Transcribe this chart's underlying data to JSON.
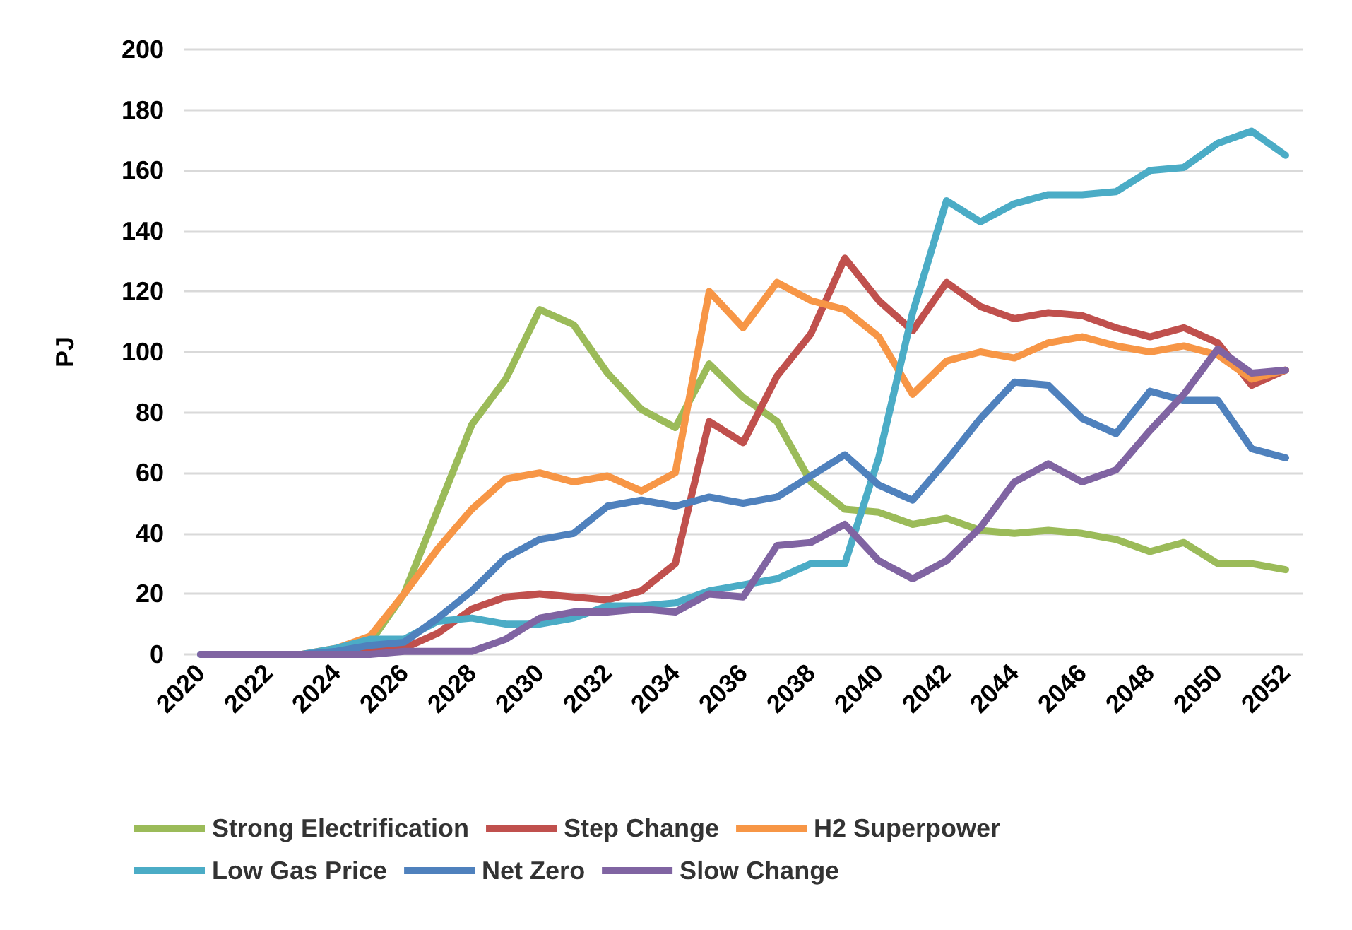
{
  "chart_data": {
    "type": "line",
    "ylabel": "PJ",
    "categories": [
      "2020",
      null,
      "2022",
      null,
      "2024",
      null,
      "2026",
      null,
      "2028",
      null,
      "2030",
      null,
      "2032",
      null,
      "2034",
      null,
      "2036",
      null,
      "2038",
      null,
      "2040",
      null,
      "2042",
      null,
      "2044",
      null,
      "2046",
      null,
      "2048",
      null,
      "2050",
      null,
      "2052"
    ],
    "ylim": [
      0,
      200
    ],
    "yticks": [
      0,
      20,
      40,
      60,
      80,
      100,
      120,
      140,
      160,
      180,
      200
    ],
    "grid": "y",
    "legend": "bottom",
    "marker": "none",
    "line_style": "solid",
    "series": [
      {
        "name": "Strong Electrification",
        "color": "#9bbb59",
        "values": [
          null,
          null,
          0,
          0,
          1,
          4,
          20,
          48,
          76,
          91,
          114,
          109,
          93,
          81,
          75,
          96,
          85,
          77,
          57,
          48,
          47,
          43,
          45,
          41,
          40,
          41,
          40,
          38,
          34,
          37,
          30,
          30,
          28
        ]
      },
      {
        "name": "Step Change",
        "color": "#c0504d",
        "values": [
          null,
          null,
          null,
          null,
          0,
          1,
          2,
          7,
          15,
          19,
          20,
          19,
          18,
          21,
          30,
          77,
          70,
          92,
          106,
          131,
          117,
          107,
          123,
          115,
          111,
          113,
          112,
          108,
          105,
          108,
          103,
          89,
          94
        ]
      },
      {
        "name": "H2 Superpower",
        "color": "#f79646",
        "values": [
          null,
          null,
          null,
          0,
          2,
          6,
          20,
          35,
          48,
          58,
          60,
          57,
          59,
          54,
          60,
          120,
          108,
          123,
          117,
          114,
          105,
          86,
          97,
          100,
          98,
          103,
          105,
          102,
          100,
          102,
          99,
          91,
          94
        ]
      },
      {
        "name": "Low Gas Price",
        "color": "#4bacc6",
        "values": [
          null,
          null,
          0,
          0,
          2,
          5,
          5,
          11,
          12,
          10,
          10,
          12,
          16,
          16,
          17,
          21,
          23,
          25,
          30,
          30,
          65,
          113,
          150,
          143,
          149,
          152,
          152,
          153,
          160,
          161,
          169,
          173,
          165
        ]
      },
      {
        "name": "Net Zero",
        "color": "#4f81bd",
        "values": [
          0,
          0,
          0,
          0,
          1,
          3,
          4,
          12,
          21,
          32,
          38,
          40,
          49,
          51,
          49,
          52,
          50,
          52,
          59,
          66,
          56,
          51,
          64,
          78,
          90,
          89,
          78,
          73,
          87,
          84,
          84,
          68,
          65
        ]
      },
      {
        "name": "Slow Change",
        "color": "#8064a2",
        "values": [
          0,
          0,
          0,
          0,
          0,
          0,
          1,
          1,
          1,
          5,
          12,
          14,
          14,
          15,
          14,
          20,
          19,
          36,
          37,
          43,
          31,
          25,
          31,
          42,
          57,
          63,
          57,
          61,
          74,
          86,
          101,
          93,
          94
        ]
      }
    ]
  }
}
